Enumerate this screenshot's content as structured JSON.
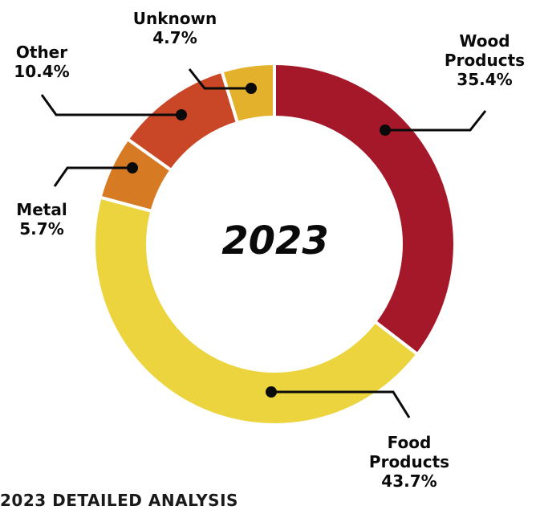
{
  "chart_data": {
    "type": "pie",
    "donut": true,
    "center_label": "2023",
    "slices": [
      {
        "label_lines": [
          "Wood",
          "Products"
        ],
        "value": 35.4,
        "value_label": "35.4%",
        "color": "#a5182a"
      },
      {
        "label_lines": [
          "Food",
          "Products"
        ],
        "value": 43.7,
        "value_label": "43.7%",
        "color": "#ecd43f"
      },
      {
        "label_lines": [
          "Metal"
        ],
        "value": 5.7,
        "value_label": "5.7%",
        "color": "#d67a23"
      },
      {
        "label_lines": [
          "Other"
        ],
        "value": 10.4,
        "value_label": "10.4%",
        "color": "#c94626"
      },
      {
        "label_lines": [
          "Unknown"
        ],
        "value": 4.7,
        "value_label": "4.7%",
        "color": "#e3b12b"
      }
    ]
  },
  "footer_text": "2023 DETAILED ANALYSIS"
}
